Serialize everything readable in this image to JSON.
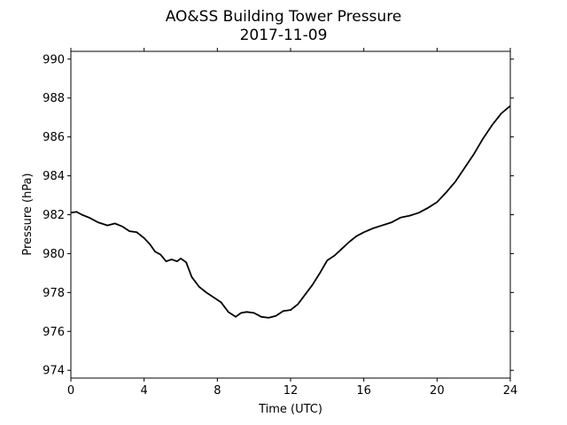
{
  "chart_data": {
    "type": "line",
    "title": "AO&SS Building Tower Pressure",
    "subtitle": "2017-11-09",
    "xlabel": "Time (UTC)",
    "ylabel": "Pressure (hPa)",
    "xlim": [
      0,
      24
    ],
    "ylim": [
      973.6,
      990.4
    ],
    "xticks": [
      0,
      4,
      8,
      12,
      16,
      20,
      24
    ],
    "yticks": [
      974,
      976,
      978,
      980,
      982,
      984,
      986,
      988,
      990
    ],
    "grid": false,
    "legend": "none",
    "series": [
      {
        "color": "#000000",
        "x": [
          0,
          0.3,
          0.6,
          1.0,
          1.5,
          2.0,
          2.4,
          2.8,
          3.2,
          3.6,
          4.0,
          4.3,
          4.6,
          4.9,
          5.2,
          5.5,
          5.8,
          6.0,
          6.3,
          6.6,
          7.0,
          7.4,
          7.8,
          8.2,
          8.6,
          9.0,
          9.3,
          9.6,
          10.0,
          10.4,
          10.8,
          11.2,
          11.6,
          12.0,
          12.4,
          12.8,
          13.2,
          13.6,
          14.0,
          14.4,
          14.8,
          15.2,
          15.6,
          16.0,
          16.5,
          17.0,
          17.5,
          18.0,
          18.5,
          19.0,
          19.5,
          20.0,
          20.5,
          21.0,
          21.5,
          22.0,
          22.5,
          23.0,
          23.5,
          24.0
        ],
        "y": [
          982.1,
          982.15,
          982.0,
          981.85,
          981.6,
          981.45,
          981.55,
          981.4,
          981.15,
          981.1,
          980.8,
          980.5,
          980.1,
          979.95,
          979.6,
          979.7,
          979.6,
          979.75,
          979.55,
          978.8,
          978.3,
          978.0,
          977.75,
          977.5,
          977.0,
          976.75,
          976.95,
          977.0,
          976.95,
          976.75,
          976.7,
          976.8,
          977.05,
          977.1,
          977.4,
          977.9,
          978.4,
          979.0,
          979.65,
          979.9,
          980.25,
          980.6,
          980.9,
          981.1,
          981.3,
          981.45,
          981.6,
          981.85,
          981.95,
          982.1,
          982.35,
          982.65,
          983.15,
          983.7,
          984.4,
          985.1,
          985.9,
          986.6,
          987.2,
          987.6
        ]
      }
    ]
  }
}
